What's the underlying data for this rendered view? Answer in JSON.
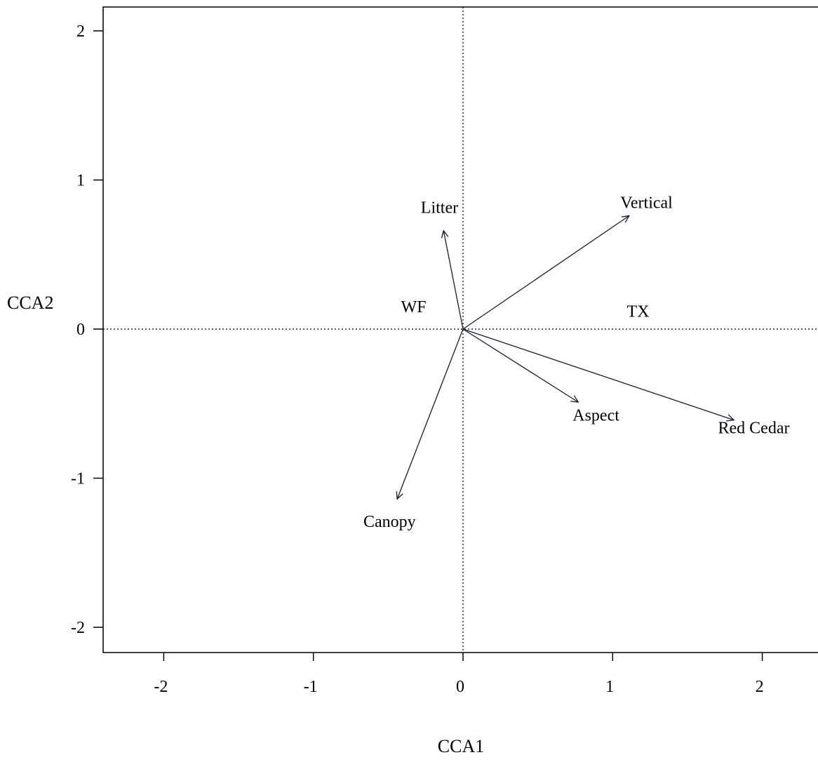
{
  "chart_data": {
    "type": "scatter",
    "subtype": "ordination-biplot",
    "xlabel": "CCA1",
    "ylabel": "CCA2",
    "xlim": [
      -2.4,
      2.4
    ],
    "ylim": [
      -2.2,
      2.2
    ],
    "x_ticks": [
      -2,
      -1,
      0,
      1,
      2
    ],
    "x_tick_labels": [
      "-2",
      "-1",
      "0",
      "1",
      "2"
    ],
    "y_ticks": [
      -2,
      -1,
      0,
      1,
      2
    ],
    "y_tick_labels": [
      "-2",
      "-1",
      "0",
      "1",
      "2"
    ],
    "reference_lines": {
      "x": 0,
      "y": 0,
      "style": "dotted"
    },
    "grid": false,
    "vectors": [
      {
        "label": "Litter",
        "x": -0.13,
        "y": 0.66
      },
      {
        "label": "Vertical",
        "x": 1.11,
        "y": 0.76
      },
      {
        "label": "Aspect",
        "x": 0.77,
        "y": -0.49
      },
      {
        "label": "Red Cedar",
        "x": 1.81,
        "y": -0.61
      },
      {
        "label": "Canopy",
        "x": -0.44,
        "y": -1.14
      }
    ],
    "points": [
      {
        "label": "WF",
        "x": -0.33,
        "y": 0.15
      },
      {
        "label": "TX",
        "x": 1.17,
        "y": 0.12
      }
    ]
  }
}
